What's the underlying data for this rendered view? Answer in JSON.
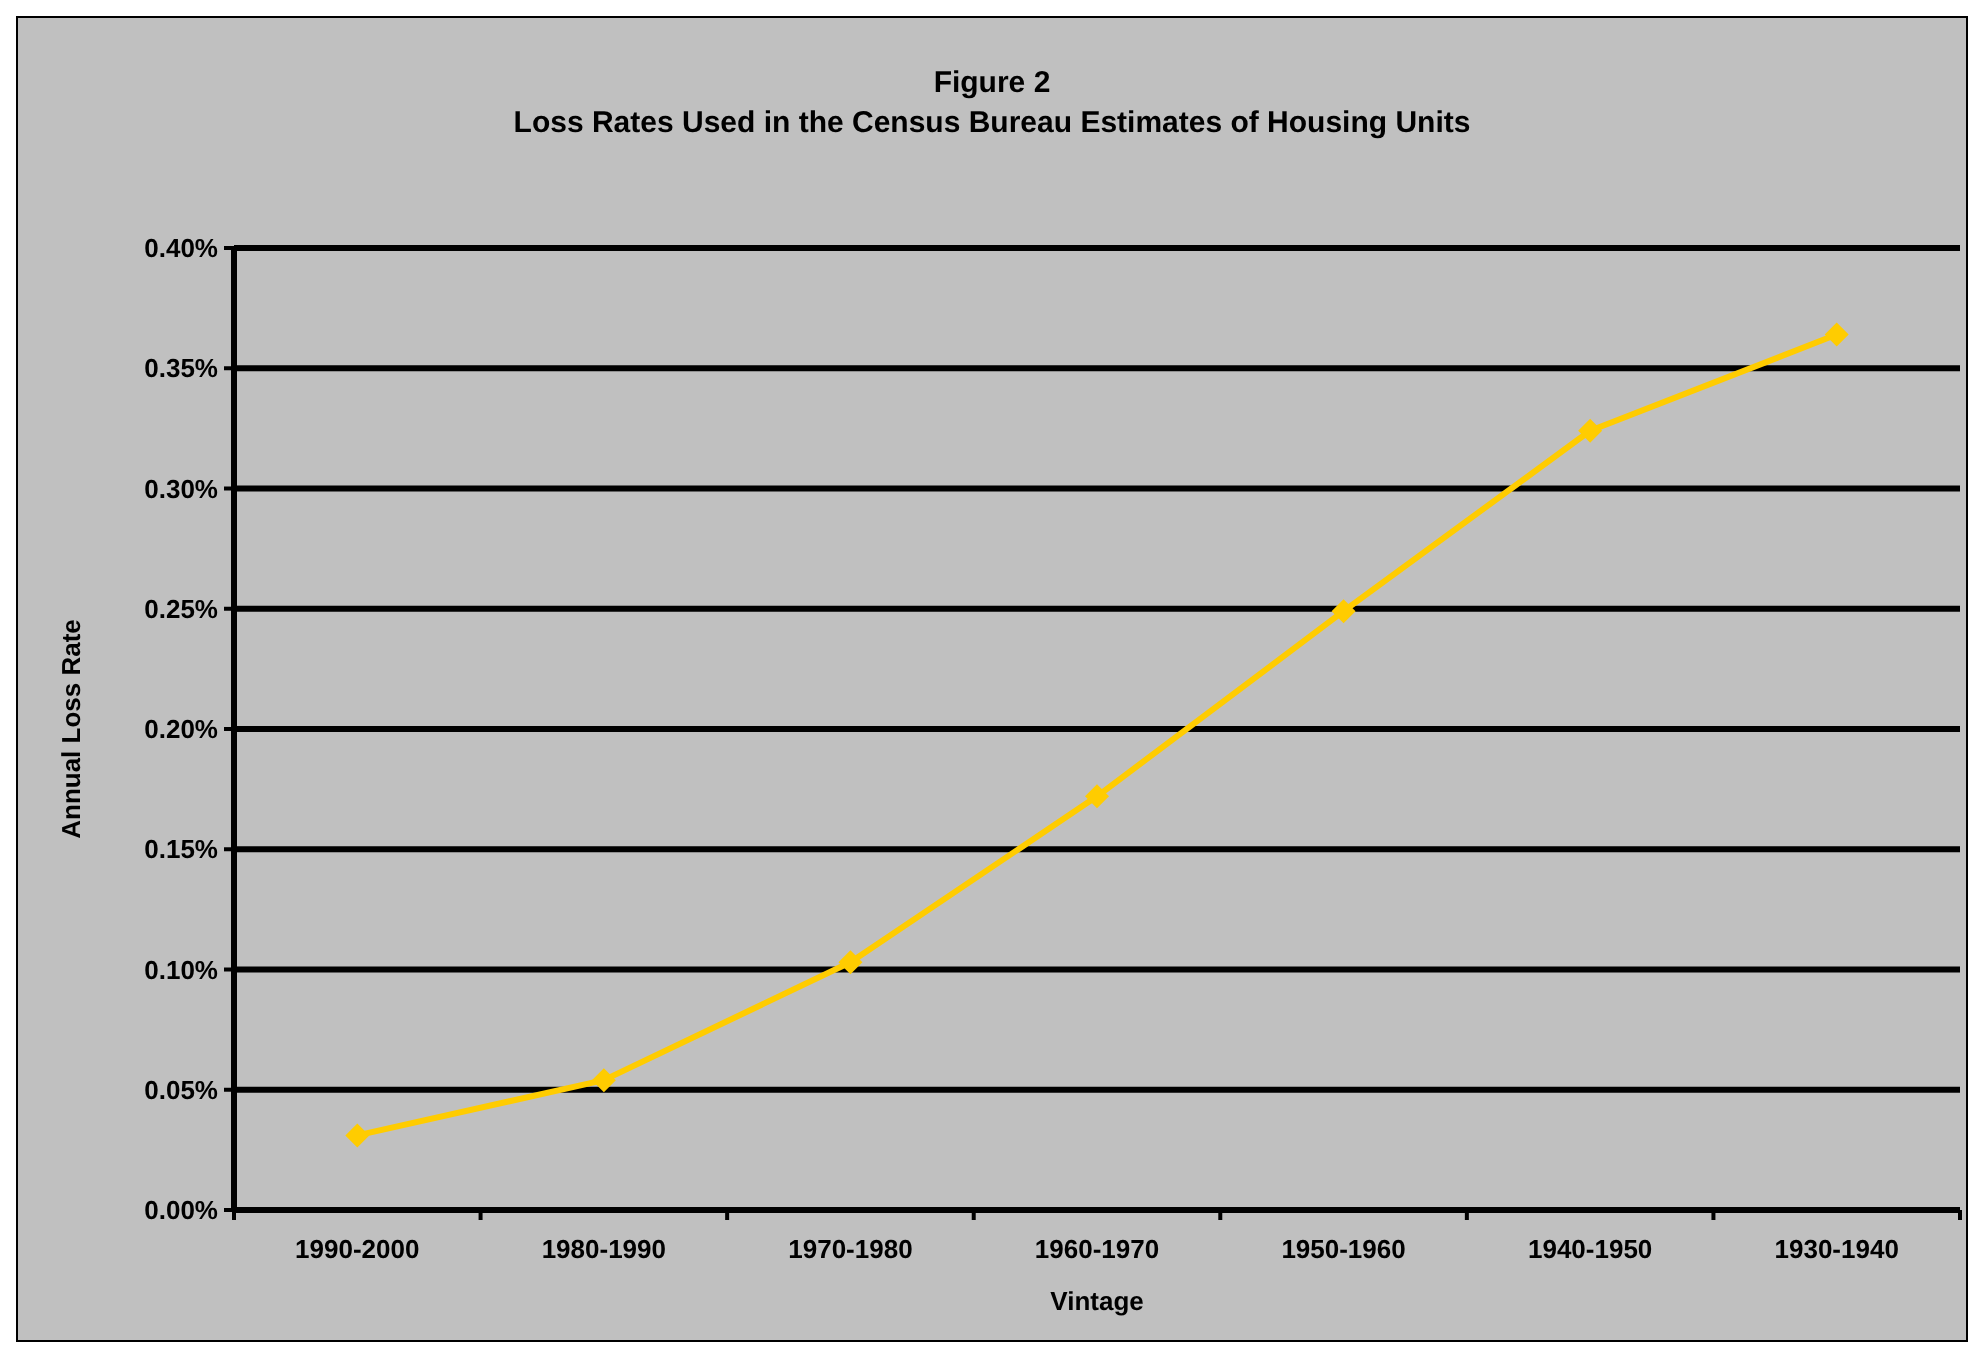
{
  "chart_data": {
    "type": "line",
    "title": "Figure 2",
    "subtitle": "Loss Rates Used in the Census Bureau Estimates of Housing Units",
    "xlabel": "Vintage",
    "ylabel": "Annual Loss Rate",
    "categories": [
      "1990-2000",
      "1980-1990",
      "1970-1980",
      "1960-1970",
      "1950-1960",
      "1940-1950",
      "1930-1940"
    ],
    "series": [
      {
        "color": "#ffcc00",
        "values": [
          0.031,
          0.054,
          0.103,
          0.172,
          0.249,
          0.324,
          0.364
        ]
      }
    ],
    "ylim": [
      0,
      0.4
    ],
    "yticks": [
      {
        "value": 0,
        "label": "0.00%"
      },
      {
        "value": 0.05,
        "label": "0.05%"
      },
      {
        "value": 0.1,
        "label": "0.10%"
      },
      {
        "value": 0.15,
        "label": "0.15%"
      },
      {
        "value": 0.2,
        "label": "0.20%"
      },
      {
        "value": 0.25,
        "label": "0.25%"
      },
      {
        "value": 0.3,
        "label": "0.30%"
      },
      {
        "value": 0.35,
        "label": "0.35%"
      },
      {
        "value": 0.4,
        "label": "0.40%"
      }
    ],
    "grid": "y",
    "marker": "diamond",
    "line_style": "solid"
  }
}
